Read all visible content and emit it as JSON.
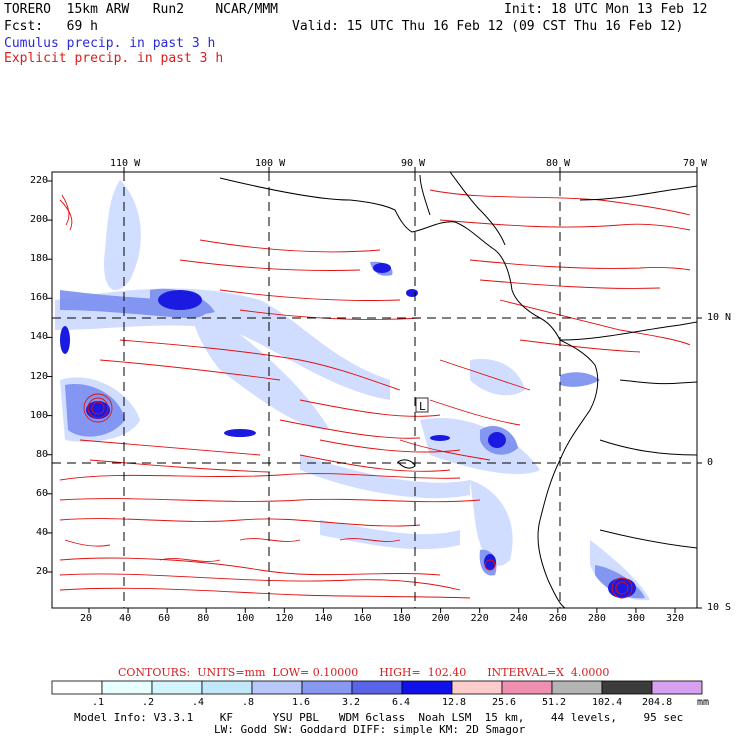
{
  "header": {
    "model": "TORERO",
    "resolution": "15km ARW",
    "run": "Run2",
    "org": "NCAR/MMM",
    "init": "Init: 18 UTC Mon 13 Feb 12",
    "fcst_label": "Fcst:",
    "fcst_value": "69 h",
    "valid": "Valid: 15 UTC Thu 16 Feb 12 (09 CST Thu 16 Feb 12)",
    "cumulus": "Cumulus precip. in past 3 h",
    "explicit": "Explicit precip. in past 3 h"
  },
  "map": {
    "top_lon_labels": [
      "110 W",
      "100 W",
      "90 W",
      "80 W",
      "70 W"
    ],
    "right_lat_labels": [
      "10 N",
      "0",
      "10 S"
    ],
    "y_ticks": [
      "220",
      "200",
      "180",
      "160",
      "140",
      "120",
      "100",
      "80",
      "60",
      "40",
      "20"
    ],
    "x_ticks": [
      "20",
      "40",
      "60",
      "80",
      "100",
      "120",
      "140",
      "160",
      "180",
      "200",
      "220",
      "240",
      "260",
      "280",
      "300",
      "320"
    ],
    "low_marker": "L",
    "colors": {
      "contour": "#e01010",
      "precip_light": "#c8d8ff",
      "precip_mid": "#7a8ef0",
      "precip_dark": "#1a1ae0",
      "land": "#000000"
    }
  },
  "legend": {
    "contours_text": "CONTOURS:  UNITS=mm  LOW= 0.10000      HIGH=  102.40      INTERVAL=X  4.0000",
    "thresholds": [
      ".1",
      ".2",
      ".4",
      ".8",
      "1.6",
      "3.2",
      "6.4",
      "12.8",
      "25.6",
      "51.2",
      "102.4",
      "204.8"
    ],
    "units": "mm",
    "colors": [
      "#ffffff",
      "#e8ffff",
      "#d2f4fa",
      "#c0e8f8",
      "#b8c8f8",
      "#8898f0",
      "#5a64e8",
      "#1010e8",
      "#ffcccc",
      "#f090b0",
      "#b4b4b4",
      "#3c3c3c",
      "#d8a0f0"
    ]
  },
  "footer": {
    "line1": "Model Info: V3.3.1    KF      YSU PBL   WDM 6class  Noah LSM  15 km,    44 levels,    95 sec",
    "line2": "LW: Godd SW: Goddard DIFF: simple KM: 2D Smagor"
  }
}
